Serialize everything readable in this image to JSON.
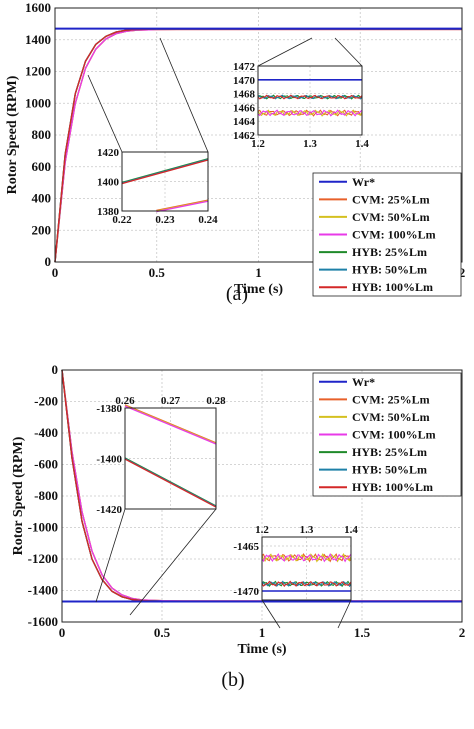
{
  "chart_data": [
    {
      "type": "line",
      "panel_label": "(a)",
      "xlabel": "Time (s)",
      "ylabel": "Rotor Speed (RPM)",
      "xlim": [
        0,
        2
      ],
      "ylim": [
        0,
        1600
      ],
      "xticks": [
        "0",
        "0.5",
        "1",
        "1.5",
        "2"
      ],
      "yticks": [
        "0",
        "200",
        "400",
        "600",
        "800",
        "1000",
        "1200",
        "1400",
        "1600"
      ],
      "grid": true,
      "legend_position": "bottom-right",
      "reference_speed": 1470,
      "series": [
        {
          "name": "Wr*",
          "color": "#1f24c8",
          "x": [
            0,
            2
          ],
          "y": [
            1470,
            1470
          ]
        },
        {
          "name": "CVM: 25%Lm",
          "color": "#e8602a",
          "x": [
            0,
            0.05,
            0.1,
            0.15,
            0.2,
            0.25,
            0.3,
            0.35,
            0.4,
            0.5,
            0.6,
            0.8,
            1,
            1.5,
            2
          ],
          "y": [
            0,
            630,
            1000,
            1220,
            1340,
            1405,
            1438,
            1453,
            1460,
            1464,
            1465,
            1465,
            1465,
            1465,
            1465
          ]
        },
        {
          "name": "CVM: 50%Lm",
          "color": "#d4c020",
          "x": [
            0,
            0.05,
            0.1,
            0.15,
            0.2,
            0.25,
            0.3,
            0.35,
            0.4,
            0.5,
            0.6,
            0.8,
            1,
            1.5,
            2
          ],
          "y": [
            0,
            630,
            1000,
            1220,
            1340,
            1405,
            1438,
            1453,
            1460,
            1464,
            1465,
            1465,
            1465,
            1465,
            1465
          ]
        },
        {
          "name": "CVM: 100%Lm",
          "color": "#e83ae8",
          "x": [
            0,
            0.05,
            0.1,
            0.15,
            0.2,
            0.25,
            0.3,
            0.35,
            0.4,
            0.5,
            0.6,
            0.8,
            1,
            1.5,
            2
          ],
          "y": [
            0,
            630,
            1000,
            1220,
            1340,
            1405,
            1438,
            1453,
            1460,
            1464,
            1465,
            1465,
            1465,
            1465,
            1465
          ]
        },
        {
          "name": "HYB: 25%Lm",
          "color": "#1f8a2a",
          "x": [
            0,
            0.05,
            0.1,
            0.15,
            0.2,
            0.25,
            0.3,
            0.35,
            0.4,
            0.5,
            0.6,
            0.8,
            1,
            1.5,
            2
          ],
          "y": [
            0,
            680,
            1060,
            1265,
            1370,
            1422,
            1448,
            1460,
            1465,
            1467,
            1467,
            1467,
            1467,
            1467,
            1467
          ]
        },
        {
          "name": "HYB: 50%Lm",
          "color": "#1e80a8",
          "x": [
            0,
            0.05,
            0.1,
            0.15,
            0.2,
            0.25,
            0.3,
            0.35,
            0.4,
            0.5,
            0.6,
            0.8,
            1,
            1.5,
            2
          ],
          "y": [
            0,
            680,
            1060,
            1265,
            1370,
            1422,
            1448,
            1460,
            1465,
            1467,
            1467,
            1467,
            1467,
            1467,
            1467
          ]
        },
        {
          "name": "HYB: 100%Lm",
          "color": "#d42828",
          "x": [
            0,
            0.05,
            0.1,
            0.15,
            0.2,
            0.25,
            0.3,
            0.35,
            0.4,
            0.5,
            0.6,
            0.8,
            1,
            1.5,
            2
          ],
          "y": [
            0,
            680,
            1060,
            1265,
            1370,
            1422,
            1448,
            1460,
            1465,
            1467,
            1467,
            1467,
            1467,
            1467,
            1467
          ]
        }
      ],
      "insets": [
        {
          "xlim": [
            0.22,
            0.24
          ],
          "ylim": [
            1380,
            1420
          ],
          "xticks": [
            "0.22",
            "0.23",
            "0.24"
          ],
          "yticks": [
            "1380",
            "1400",
            "1420"
          ],
          "lines": [
            {
              "group": "HYB",
              "x": [
                0.22,
                0.24
              ],
              "y": [
                1399,
                1415
              ]
            },
            {
              "group": "CVM",
              "x": [
                0.228,
                0.24
              ],
              "y": [
                1380,
                1387
              ]
            }
          ]
        },
        {
          "xlim": [
            1.2,
            1.4
          ],
          "ylim": [
            1462,
            1472
          ],
          "xticks": [
            "1.2",
            "1.3",
            "1.4"
          ],
          "yticks": [
            "1462",
            "1464",
            "1466",
            "1468",
            "1470",
            "1472"
          ],
          "reference": 1470,
          "hyb_level": 1467.5,
          "cvm_level": 1465.2
        }
      ]
    },
    {
      "type": "line",
      "panel_label": "(b)",
      "xlabel": "Time (s)",
      "ylabel": "Rotor Speed (RPM)",
      "xlim": [
        0,
        2
      ],
      "ylim": [
        -1600,
        0
      ],
      "xticks": [
        "0",
        "0.5",
        "1",
        "1.5",
        "2"
      ],
      "yticks": [
        "0",
        "-200",
        "-400",
        "-600",
        "-800",
        "-1000",
        "-1200",
        "-1400",
        "-1600"
      ],
      "grid": true,
      "legend_position": "top-right",
      "reference_speed": -1470,
      "series": [
        {
          "name": "Wr*",
          "color": "#1f24c8",
          "x": [
            0,
            2
          ],
          "y": [
            -1470,
            -1470
          ]
        },
        {
          "name": "CVM: 25%Lm",
          "color": "#e8602a",
          "x": [
            0,
            0.05,
            0.1,
            0.15,
            0.2,
            0.25,
            0.3,
            0.35,
            0.4,
            0.5,
            0.6,
            0.8,
            1,
            1.5,
            2
          ],
          "y": [
            0,
            -520,
            -900,
            -1150,
            -1300,
            -1385,
            -1428,
            -1450,
            -1460,
            -1465,
            -1466,
            -1466,
            -1466,
            -1466,
            -1466
          ]
        },
        {
          "name": "CVM: 50%Lm",
          "color": "#d4c020",
          "x": [
            0,
            0.05,
            0.1,
            0.15,
            0.2,
            0.25,
            0.3,
            0.35,
            0.4,
            0.5,
            0.6,
            0.8,
            1,
            1.5,
            2
          ],
          "y": [
            0,
            -520,
            -900,
            -1150,
            -1300,
            -1385,
            -1428,
            -1450,
            -1460,
            -1465,
            -1466,
            -1466,
            -1466,
            -1466,
            -1466
          ]
        },
        {
          "name": "CVM: 100%Lm",
          "color": "#e83ae8",
          "x": [
            0,
            0.05,
            0.1,
            0.15,
            0.2,
            0.25,
            0.3,
            0.35,
            0.4,
            0.5,
            0.6,
            0.8,
            1,
            1.5,
            2
          ],
          "y": [
            0,
            -520,
            -900,
            -1150,
            -1300,
            -1385,
            -1428,
            -1450,
            -1460,
            -1465,
            -1466,
            -1466,
            -1466,
            -1466,
            -1466
          ]
        },
        {
          "name": "HYB: 25%Lm",
          "color": "#1f8a2a",
          "x": [
            0,
            0.05,
            0.1,
            0.15,
            0.2,
            0.25,
            0.3,
            0.35,
            0.4,
            0.5,
            0.6,
            0.8,
            1,
            1.5,
            2
          ],
          "y": [
            0,
            -560,
            -960,
            -1200,
            -1330,
            -1405,
            -1440,
            -1457,
            -1464,
            -1468,
            -1469,
            -1469,
            -1469,
            -1469,
            -1469
          ]
        },
        {
          "name": "HYB: 50%Lm",
          "color": "#1e80a8",
          "x": [
            0,
            0.05,
            0.1,
            0.15,
            0.2,
            0.25,
            0.3,
            0.35,
            0.4,
            0.5,
            0.6,
            0.8,
            1,
            1.5,
            2
          ],
          "y": [
            0,
            -560,
            -960,
            -1200,
            -1330,
            -1405,
            -1440,
            -1457,
            -1464,
            -1468,
            -1469,
            -1469,
            -1469,
            -1469,
            -1469
          ]
        },
        {
          "name": "HYB: 100%Lm",
          "color": "#d42828",
          "x": [
            0,
            0.05,
            0.1,
            0.15,
            0.2,
            0.25,
            0.3,
            0.35,
            0.4,
            0.5,
            0.6,
            0.8,
            1,
            1.5,
            2
          ],
          "y": [
            0,
            -560,
            -960,
            -1200,
            -1330,
            -1405,
            -1440,
            -1457,
            -1464,
            -1468,
            -1469,
            -1469,
            -1469,
            -1469,
            -1469
          ]
        }
      ],
      "insets": [
        {
          "xlim": [
            0.26,
            0.28
          ],
          "ylim": [
            -1420,
            -1380
          ],
          "xticks": [
            "0.26",
            "0.27",
            "0.28"
          ],
          "yticks": [
            "-1380",
            "-1400",
            "-1420"
          ],
          "lines": [
            {
              "group": "CVM",
              "x": [
                0.26,
                0.28
              ],
              "y": [
                -1379,
                -1394
              ]
            },
            {
              "group": "HYB",
              "x": [
                0.26,
                0.28
              ],
              "y": [
                -1400,
                -1419
              ]
            }
          ]
        },
        {
          "xlim": [
            1.2,
            1.4
          ],
          "ylim": [
            -1471,
            -1464
          ],
          "xticks": [
            "1.2",
            "1.3",
            "1.4"
          ],
          "yticks": [
            "-1465",
            "-1470"
          ],
          "reference": -1470,
          "hyb_level": -1469.2,
          "cvm_level": -1466.3
        }
      ]
    }
  ]
}
